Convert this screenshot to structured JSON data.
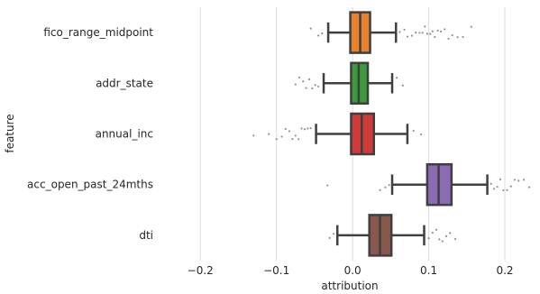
{
  "chart_data": {
    "type": "box",
    "title": "",
    "xlabel": "attribution",
    "ylabel": "feature",
    "xlim": [
      -0.25,
      0.245
    ],
    "grid": "vertical",
    "x_ticks": [
      -0.2,
      -0.1,
      0.0,
      0.1,
      0.2
    ],
    "x_tick_labels": [
      "−0.2",
      "−0.1",
      "0.0",
      "0.1",
      "0.2"
    ],
    "categories": [
      "fico_range_midpoint",
      "addr_state",
      "annual_inc",
      "acc_open_past_24mths",
      "dti"
    ],
    "series": [
      {
        "category": "fico_range_midpoint",
        "color": "#e8812e",
        "whisker_low": -0.032,
        "q1": -0.003,
        "median": 0.01,
        "q3": 0.023,
        "whisker_high": 0.057,
        "outliers": [
          -0.055,
          -0.045,
          -0.04,
          0.062,
          0.068,
          0.072,
          0.078,
          0.083,
          0.088,
          0.092,
          0.095,
          0.098,
          0.102,
          0.105,
          0.108,
          0.112,
          0.116,
          0.121,
          0.126,
          0.131,
          0.138,
          0.145,
          0.156
        ]
      },
      {
        "category": "addr_state",
        "color": "#3b9a3c",
        "whisker_low": -0.038,
        "q1": -0.002,
        "median": 0.008,
        "q3": 0.02,
        "whisker_high": 0.052,
        "outliers": [
          -0.075,
          -0.07,
          -0.065,
          -0.061,
          -0.057,
          -0.053,
          -0.049,
          -0.045,
          0.058,
          0.066
        ]
      },
      {
        "category": "annual_inc",
        "color": "#cd3b3a",
        "whisker_low": -0.048,
        "q1": -0.002,
        "median": 0.012,
        "q3": 0.028,
        "whisker_high": 0.072,
        "outliers": [
          -0.13,
          -0.11,
          -0.1,
          -0.093,
          -0.088,
          -0.083,
          -0.079,
          -0.075,
          -0.071,
          -0.067,
          -0.063,
          -0.059,
          -0.055,
          0.08,
          0.09
        ]
      },
      {
        "category": "acc_open_past_24mths",
        "color": "#8c6bb5",
        "whisker_low": 0.052,
        "q1": 0.098,
        "median": 0.113,
        "q3": 0.13,
        "whisker_high": 0.177,
        "outliers": [
          -0.033,
          0.036,
          0.043,
          0.048,
          0.182,
          0.186,
          0.19,
          0.194,
          0.198,
          0.203,
          0.208,
          0.213,
          0.218,
          0.225,
          0.232
        ]
      },
      {
        "category": "dti",
        "color": "#88584d",
        "whisker_low": -0.02,
        "q1": 0.022,
        "median": 0.036,
        "q3": 0.051,
        "whisker_high": 0.094,
        "outliers": [
          -0.03,
          -0.025,
          0.1,
          0.105,
          0.11,
          0.114,
          0.118,
          0.123,
          0.128,
          0.135
        ]
      }
    ]
  }
}
